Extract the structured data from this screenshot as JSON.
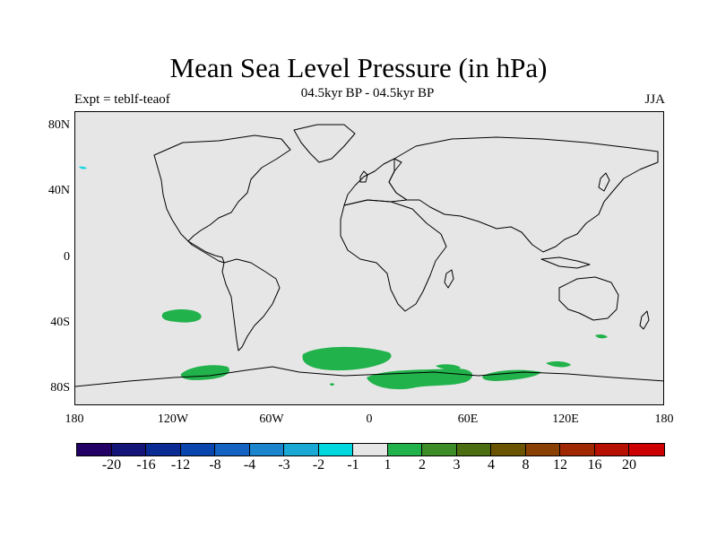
{
  "title": "Mean Sea Level Pressure (in hPa)",
  "subtitle": "04.5kyr BP - 04.5kyr BP",
  "left_label": "Expt = teblf-teaof",
  "right_label": "JJA",
  "lat_ticks": [
    "80N",
    "40N",
    "0",
    "40S",
    "80S"
  ],
  "lon_ticks": [
    "180",
    "120W",
    "60W",
    "0",
    "60E",
    "120E",
    "180"
  ],
  "colors": {
    "background_field": "#e6e6e6",
    "positive_anomaly": "#21b24b",
    "negative_anomaly": "#20d8e0"
  },
  "colorbar": {
    "colors": [
      "#220066",
      "#141478",
      "#0a2a94",
      "#0846ad",
      "#1462c2",
      "#1a84cc",
      "#1aa8d4",
      "#00d8e0",
      "#e6e6e6",
      "#21b24b",
      "#3c8c28",
      "#4a6e10",
      "#6a5400",
      "#8a4000",
      "#a02800",
      "#b81000",
      "#cc0000"
    ],
    "labels": [
      "-20",
      "-16",
      "-12",
      "-8",
      "-4",
      "-3",
      "-2",
      "-1",
      "1",
      "2",
      "3",
      "4",
      "8",
      "12",
      "16",
      "20"
    ]
  }
}
